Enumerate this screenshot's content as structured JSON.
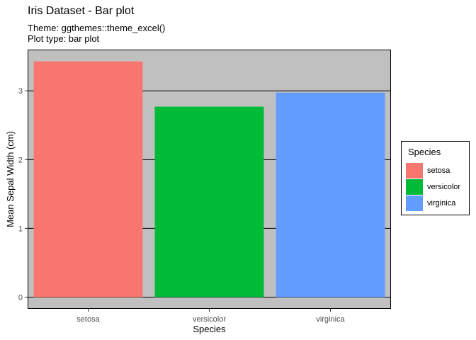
{
  "header": {
    "title": "Iris Dataset - Bar plot",
    "subtitle_line1": "Theme: ggthemes::theme_excel()",
    "subtitle_line2": "Plot type: bar plot"
  },
  "colors": {
    "panel_background": "#c0c0c0",
    "gridline": "#000000",
    "setosa": "#f8766d",
    "versicolor": "#00ba38",
    "virginica": "#619cff"
  },
  "legend": {
    "title": "Species",
    "items": [
      {
        "label": "setosa",
        "color": "#f8766d"
      },
      {
        "label": "versicolor",
        "color": "#00ba38"
      },
      {
        "label": "virginica",
        "color": "#619cff"
      }
    ]
  },
  "chart_data": {
    "type": "bar",
    "categories": [
      "setosa",
      "versicolor",
      "virginica"
    ],
    "values": [
      3.428,
      2.77,
      2.974
    ],
    "colors": [
      "#f8766d",
      "#00ba38",
      "#619cff"
    ],
    "xlabel": "Species",
    "ylabel": "Mean Sepal Width (cm)",
    "ylim": [
      -0.17,
      3.6
    ],
    "yticks": [
      0,
      1,
      2,
      3
    ],
    "grid": "horizontal major",
    "legend_position": "right"
  }
}
